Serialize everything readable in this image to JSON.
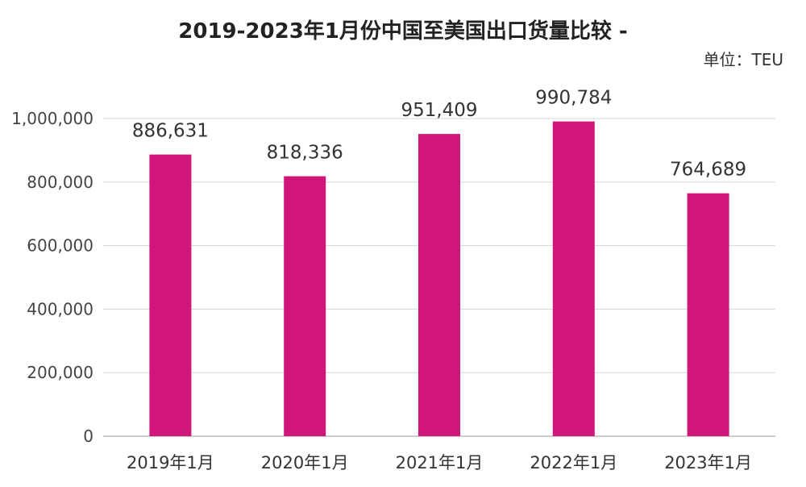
{
  "header": {
    "title": "2019-2023年1月份中国至美国出口货量比较 -",
    "unit": "单位：TEU"
  },
  "chart_data": {
    "type": "bar",
    "title": "2019-2023年1月份中国至美国出口货量比较 -",
    "unit": "TEU",
    "categories": [
      "2019年1月",
      "2020年1月",
      "2021年1月",
      "2022年1月",
      "2023年1月"
    ],
    "values": [
      886631,
      818336,
      951409,
      990784,
      764689
    ],
    "data_labels": [
      "886,631",
      "818,336",
      "951,409",
      "990,784",
      "764,689"
    ],
    "ylim": [
      0,
      1000000
    ],
    "y_ticks": [
      0,
      200000,
      400000,
      600000,
      800000,
      1000000
    ],
    "y_tick_labels": [
      "0",
      "200,000",
      "400,000",
      "600,000",
      "800,000",
      "1,000,000"
    ],
    "grid": true,
    "bar_color": "#d0157b"
  }
}
